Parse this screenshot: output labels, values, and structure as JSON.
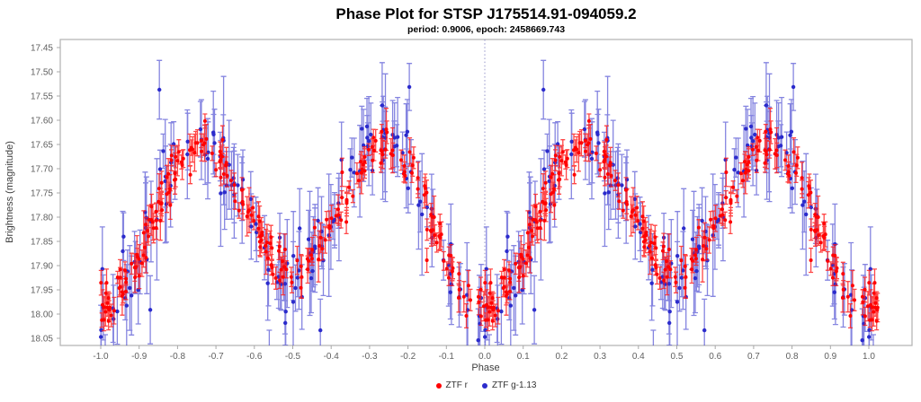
{
  "header": {
    "title": "Phase Plot for STSP J175514.91-094059.2",
    "subtitle": "period: 0.9006, epoch: 2458669.743"
  },
  "chart_data": {
    "type": "scatter",
    "title": "Phase Plot for STSP J175514.91-094059.2",
    "subtitle": "period: 0.9006, epoch: 2458669.743",
    "period": 0.9006,
    "epoch": 2458669.743,
    "xlabel": "Phase",
    "ylabel": "Brightness (magnitude)",
    "x_ticks": [
      "-1.0",
      "-0.9",
      "-0.8",
      "-0.7",
      "-0.6",
      "-0.5",
      "-0.4",
      "-0.3",
      "-0.2",
      "-0.1",
      "0.0",
      "0.1",
      "0.2",
      "0.3",
      "0.4",
      "0.5",
      "0.6",
      "0.7",
      "0.8",
      "0.9",
      "1.0"
    ],
    "y_ticks": [
      "17.45",
      "17.50",
      "17.55",
      "17.60",
      "17.65",
      "17.70",
      "17.75",
      "17.80",
      "17.85",
      "17.90",
      "17.95",
      "18.00",
      "18.05"
    ],
    "xlim": [
      -1.105,
      1.112
    ],
    "ylim": [
      18.065,
      17.433
    ],
    "y_axis_inverted": true,
    "grid": false,
    "marker_style": "filled circles with vertical error bars and caps",
    "phase_zero_guide": {
      "x": 0.0,
      "style": "dotted",
      "color": "#8a8ac4"
    },
    "legend": {
      "position": "bottom-center",
      "entries": [
        {
          "label": "ZTF r",
          "color": "#ff0000"
        },
        {
          "label": "ZTF g-1.13",
          "color": "#2b2bcc"
        }
      ]
    },
    "light_curve_model": {
      "shape": "two maxima and two minima per phase cycle (W UMa-like), deeper minimum at phase 0 and ±1",
      "mean_fourier": {
        "const": 17.8,
        "cos_2pi_phase": 0.04,
        "cos_4pi_phase": 0.15
      },
      "max_mag": 17.65,
      "primary_min_mag": 17.99,
      "primary_min_phase": 0.0,
      "secondary_min_mag": 17.91,
      "secondary_min_phase": 0.5,
      "phase_range_plotted": [
        -1.04,
        1.025
      ],
      "note": "each observation is plotted at phase, phase-1 and phase+1 within the plotted range"
    },
    "series": [
      {
        "id": "ztf-r",
        "name": "ZTF r",
        "color": "#ff0000",
        "bar_color": "rgba(255,25,25,0.8)",
        "n_obs": 260,
        "scatter_sigma": 0.022,
        "outlier_fraction": 0.05,
        "err_range": [
          0.012,
          0.032
        ],
        "cap_half": 2.5,
        "marker_radius": 2.0,
        "amp_scale": 1.0,
        "seed": 11
      },
      {
        "id": "ztf-g",
        "name": "ZTF g-1.13",
        "color": "#2b2bcc",
        "bar_color": "rgba(58,58,205,0.62)",
        "n_obs": 160,
        "scatter_sigma": 0.042,
        "outlier_fraction": 0.09,
        "err_range": [
          0.035,
          0.095
        ],
        "cap_half": 3.0,
        "marker_radius": 2.2,
        "amp_scale": 1.12,
        "seed": 7
      }
    ]
  },
  "colors": {
    "background": "#ffffff",
    "plot_border": "#b6b6b6",
    "tick": "#a8a8a8",
    "tick_text": "#5f5f5f"
  }
}
